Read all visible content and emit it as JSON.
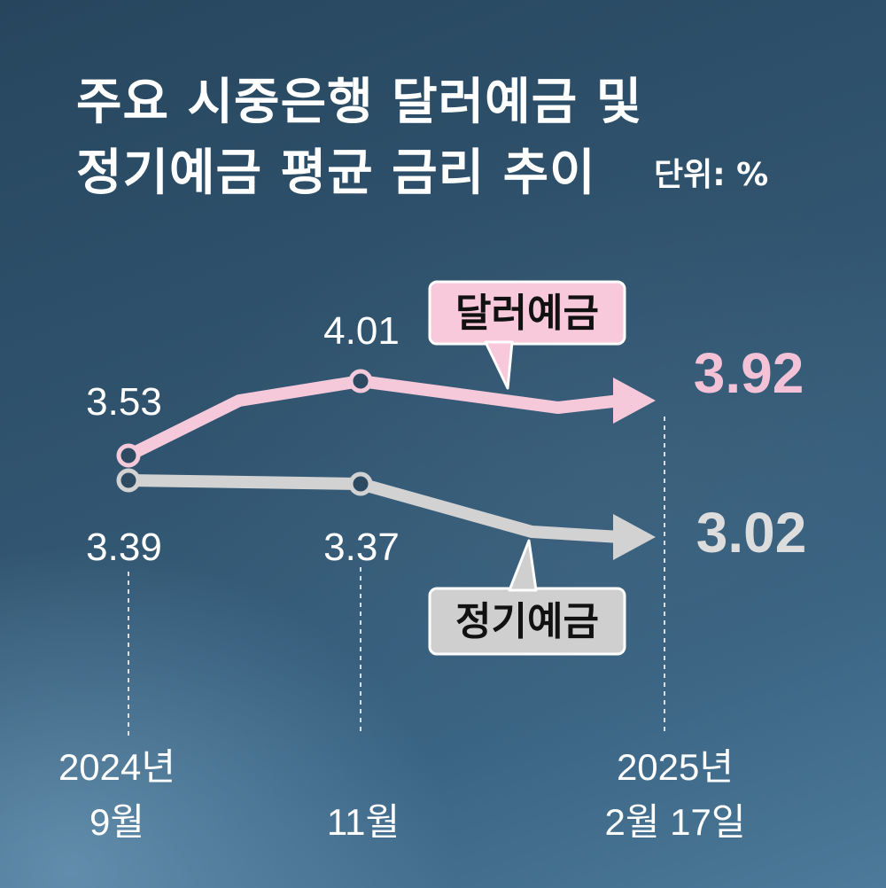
{
  "title_line1": "주요 시중은행 달러예금 및",
  "title_line2": "정기예금 평균 금리 추이",
  "unit": "단위: %",
  "chart_data": {
    "type": "line",
    "title": "주요 시중은행 달러예금 및 정기예금 평균 금리 추이",
    "unit": "단위: %",
    "x": [
      [
        "2024년",
        "9월"
      ],
      [
        "11월"
      ],
      [
        "2025년",
        "2월 17일"
      ]
    ],
    "series": [
      {
        "name": "달러예금",
        "color": "#f5c9da",
        "values": [
          3.53,
          4.01,
          3.92
        ],
        "labels": [
          "3.53",
          "4.01",
          "3.92"
        ]
      },
      {
        "name": "정기예금",
        "color": "#d2d2d2",
        "values": [
          3.39,
          3.37,
          3.02
        ],
        "labels": [
          "3.39",
          "3.37",
          "3.02"
        ]
      }
    ],
    "end_label_colors": {
      "달러예금": "#f4c2d6",
      "정기예금": "#dddddd"
    },
    "legend": "inline callouts",
    "grid": false
  }
}
